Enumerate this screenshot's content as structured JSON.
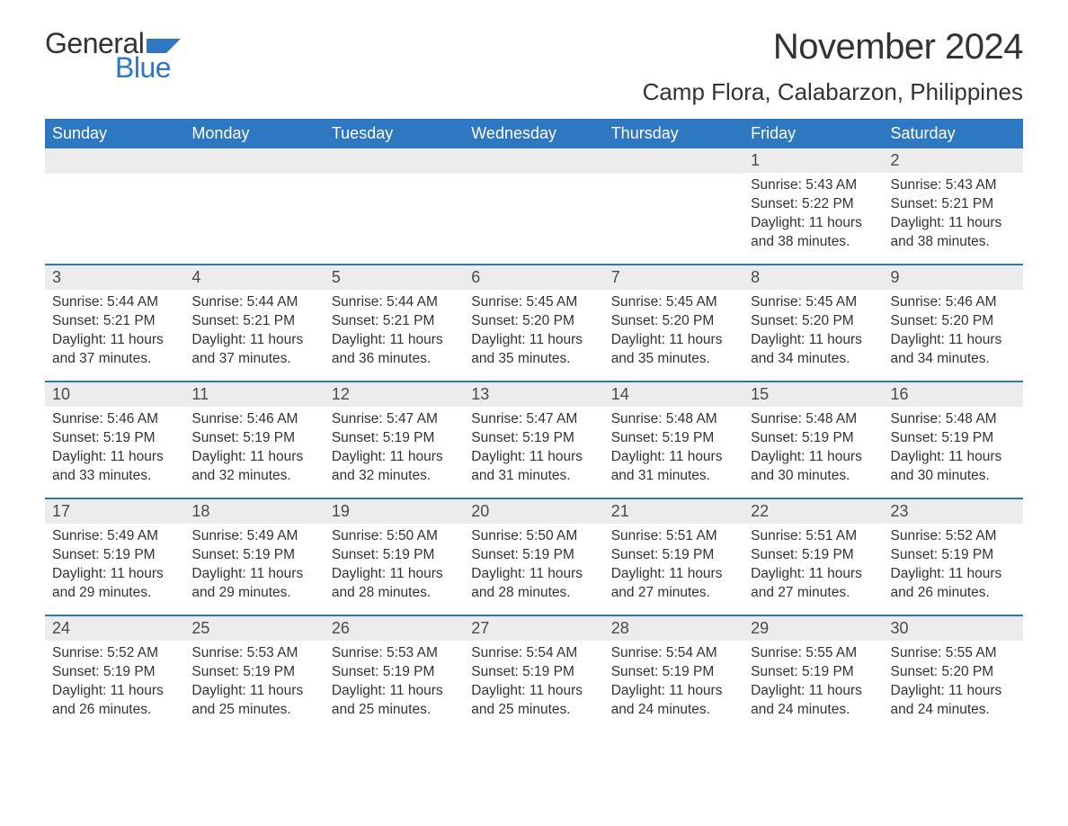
{
  "logo": {
    "word1": "General",
    "word2": "Blue",
    "flag_color": "#2d78c1",
    "word1_color": "#333333",
    "word2_color": "#2d78c1"
  },
  "header": {
    "month_title": "November 2024",
    "location": "Camp Flora, Calabarzon, Philippines"
  },
  "colors": {
    "header_bg": "#2d78c1",
    "header_text": "#ffffff",
    "day_bar_bg": "#ececec",
    "text": "#333333",
    "row_border": "#2d78c1",
    "background": "#ffffff"
  },
  "typography": {
    "month_title_fontsize": 40,
    "location_fontsize": 26,
    "weekday_fontsize": 18,
    "daynum_fontsize": 18,
    "body_fontsize": 15.5,
    "logo_fontsize": 32
  },
  "weekdays": [
    "Sunday",
    "Monday",
    "Tuesday",
    "Wednesday",
    "Thursday",
    "Friday",
    "Saturday"
  ],
  "weeks": [
    [
      null,
      null,
      null,
      null,
      null,
      {
        "n": "1",
        "sunrise": "Sunrise: 5:43 AM",
        "sunset": "Sunset: 5:22 PM",
        "day1": "Daylight: 11 hours",
        "day2": "and 38 minutes."
      },
      {
        "n": "2",
        "sunrise": "Sunrise: 5:43 AM",
        "sunset": "Sunset: 5:21 PM",
        "day1": "Daylight: 11 hours",
        "day2": "and 38 minutes."
      }
    ],
    [
      {
        "n": "3",
        "sunrise": "Sunrise: 5:44 AM",
        "sunset": "Sunset: 5:21 PM",
        "day1": "Daylight: 11 hours",
        "day2": "and 37 minutes."
      },
      {
        "n": "4",
        "sunrise": "Sunrise: 5:44 AM",
        "sunset": "Sunset: 5:21 PM",
        "day1": "Daylight: 11 hours",
        "day2": "and 37 minutes."
      },
      {
        "n": "5",
        "sunrise": "Sunrise: 5:44 AM",
        "sunset": "Sunset: 5:21 PM",
        "day1": "Daylight: 11 hours",
        "day2": "and 36 minutes."
      },
      {
        "n": "6",
        "sunrise": "Sunrise: 5:45 AM",
        "sunset": "Sunset: 5:20 PM",
        "day1": "Daylight: 11 hours",
        "day2": "and 35 minutes."
      },
      {
        "n": "7",
        "sunrise": "Sunrise: 5:45 AM",
        "sunset": "Sunset: 5:20 PM",
        "day1": "Daylight: 11 hours",
        "day2": "and 35 minutes."
      },
      {
        "n": "8",
        "sunrise": "Sunrise: 5:45 AM",
        "sunset": "Sunset: 5:20 PM",
        "day1": "Daylight: 11 hours",
        "day2": "and 34 minutes."
      },
      {
        "n": "9",
        "sunrise": "Sunrise: 5:46 AM",
        "sunset": "Sunset: 5:20 PM",
        "day1": "Daylight: 11 hours",
        "day2": "and 34 minutes."
      }
    ],
    [
      {
        "n": "10",
        "sunrise": "Sunrise: 5:46 AM",
        "sunset": "Sunset: 5:19 PM",
        "day1": "Daylight: 11 hours",
        "day2": "and 33 minutes."
      },
      {
        "n": "11",
        "sunrise": "Sunrise: 5:46 AM",
        "sunset": "Sunset: 5:19 PM",
        "day1": "Daylight: 11 hours",
        "day2": "and 32 minutes."
      },
      {
        "n": "12",
        "sunrise": "Sunrise: 5:47 AM",
        "sunset": "Sunset: 5:19 PM",
        "day1": "Daylight: 11 hours",
        "day2": "and 32 minutes."
      },
      {
        "n": "13",
        "sunrise": "Sunrise: 5:47 AM",
        "sunset": "Sunset: 5:19 PM",
        "day1": "Daylight: 11 hours",
        "day2": "and 31 minutes."
      },
      {
        "n": "14",
        "sunrise": "Sunrise: 5:48 AM",
        "sunset": "Sunset: 5:19 PM",
        "day1": "Daylight: 11 hours",
        "day2": "and 31 minutes."
      },
      {
        "n": "15",
        "sunrise": "Sunrise: 5:48 AM",
        "sunset": "Sunset: 5:19 PM",
        "day1": "Daylight: 11 hours",
        "day2": "and 30 minutes."
      },
      {
        "n": "16",
        "sunrise": "Sunrise: 5:48 AM",
        "sunset": "Sunset: 5:19 PM",
        "day1": "Daylight: 11 hours",
        "day2": "and 30 minutes."
      }
    ],
    [
      {
        "n": "17",
        "sunrise": "Sunrise: 5:49 AM",
        "sunset": "Sunset: 5:19 PM",
        "day1": "Daylight: 11 hours",
        "day2": "and 29 minutes."
      },
      {
        "n": "18",
        "sunrise": "Sunrise: 5:49 AM",
        "sunset": "Sunset: 5:19 PM",
        "day1": "Daylight: 11 hours",
        "day2": "and 29 minutes."
      },
      {
        "n": "19",
        "sunrise": "Sunrise: 5:50 AM",
        "sunset": "Sunset: 5:19 PM",
        "day1": "Daylight: 11 hours",
        "day2": "and 28 minutes."
      },
      {
        "n": "20",
        "sunrise": "Sunrise: 5:50 AM",
        "sunset": "Sunset: 5:19 PM",
        "day1": "Daylight: 11 hours",
        "day2": "and 28 minutes."
      },
      {
        "n": "21",
        "sunrise": "Sunrise: 5:51 AM",
        "sunset": "Sunset: 5:19 PM",
        "day1": "Daylight: 11 hours",
        "day2": "and 27 minutes."
      },
      {
        "n": "22",
        "sunrise": "Sunrise: 5:51 AM",
        "sunset": "Sunset: 5:19 PM",
        "day1": "Daylight: 11 hours",
        "day2": "and 27 minutes."
      },
      {
        "n": "23",
        "sunrise": "Sunrise: 5:52 AM",
        "sunset": "Sunset: 5:19 PM",
        "day1": "Daylight: 11 hours",
        "day2": "and 26 minutes."
      }
    ],
    [
      {
        "n": "24",
        "sunrise": "Sunrise: 5:52 AM",
        "sunset": "Sunset: 5:19 PM",
        "day1": "Daylight: 11 hours",
        "day2": "and 26 minutes."
      },
      {
        "n": "25",
        "sunrise": "Sunrise: 5:53 AM",
        "sunset": "Sunset: 5:19 PM",
        "day1": "Daylight: 11 hours",
        "day2": "and 25 minutes."
      },
      {
        "n": "26",
        "sunrise": "Sunrise: 5:53 AM",
        "sunset": "Sunset: 5:19 PM",
        "day1": "Daylight: 11 hours",
        "day2": "and 25 minutes."
      },
      {
        "n": "27",
        "sunrise": "Sunrise: 5:54 AM",
        "sunset": "Sunset: 5:19 PM",
        "day1": "Daylight: 11 hours",
        "day2": "and 25 minutes."
      },
      {
        "n": "28",
        "sunrise": "Sunrise: 5:54 AM",
        "sunset": "Sunset: 5:19 PM",
        "day1": "Daylight: 11 hours",
        "day2": "and 24 minutes."
      },
      {
        "n": "29",
        "sunrise": "Sunrise: 5:55 AM",
        "sunset": "Sunset: 5:19 PM",
        "day1": "Daylight: 11 hours",
        "day2": "and 24 minutes."
      },
      {
        "n": "30",
        "sunrise": "Sunrise: 5:55 AM",
        "sunset": "Sunset: 5:20 PM",
        "day1": "Daylight: 11 hours",
        "day2": "and 24 minutes."
      }
    ]
  ]
}
